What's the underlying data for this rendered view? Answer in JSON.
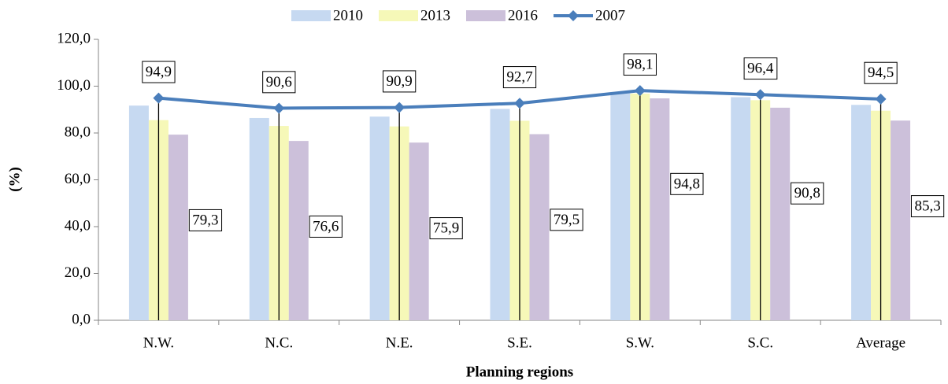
{
  "chart_data": {
    "type": "bar_line",
    "x_label": "Planning regions",
    "y_label": "(%)",
    "categories": [
      "N.W.",
      "N.C.",
      "N.E.",
      "S.E.",
      "S.W.",
      "S.C.",
      "Average"
    ],
    "series": [
      {
        "name": "2010",
        "type": "bar",
        "color": "#c6d9f1",
        "values": [
          91.7,
          86.4,
          87.0,
          90.3,
          97.5,
          95.3,
          92.0
        ]
      },
      {
        "name": "2013",
        "type": "bar",
        "color": "#f6f8b8",
        "values": [
          85.5,
          83.0,
          82.8,
          85.2,
          96.8,
          94.0,
          89.5
        ]
      },
      {
        "name": "2016",
        "type": "bar",
        "color": "#ccc0da",
        "values": [
          79.3,
          76.6,
          75.9,
          79.5,
          94.8,
          90.8,
          85.3
        ],
        "value_labels": [
          "79,3",
          "76,6",
          "75,9",
          "79,5",
          "94,8",
          "90,8",
          "85,3"
        ]
      },
      {
        "name": "2007",
        "type": "line",
        "color": "#4a7ebb",
        "values": [
          94.9,
          90.6,
          90.9,
          92.7,
          98.1,
          96.4,
          94.5
        ],
        "value_labels": [
          "94,9",
          "90,6",
          "90,9",
          "92,7",
          "98,1",
          "96,4",
          "94,5"
        ]
      }
    ],
    "ylim": [
      0,
      120
    ],
    "yticks": [
      {
        "value": 0,
        "label": "0,0"
      },
      {
        "value": 20,
        "label": "20,0"
      },
      {
        "value": 40,
        "label": "40,0"
      },
      {
        "value": 60,
        "label": "60,0"
      },
      {
        "value": 80,
        "label": "80,0"
      },
      {
        "value": 100,
        "label": "100,0"
      },
      {
        "value": 120,
        "label": "120,0"
      }
    ],
    "legend": "top"
  }
}
